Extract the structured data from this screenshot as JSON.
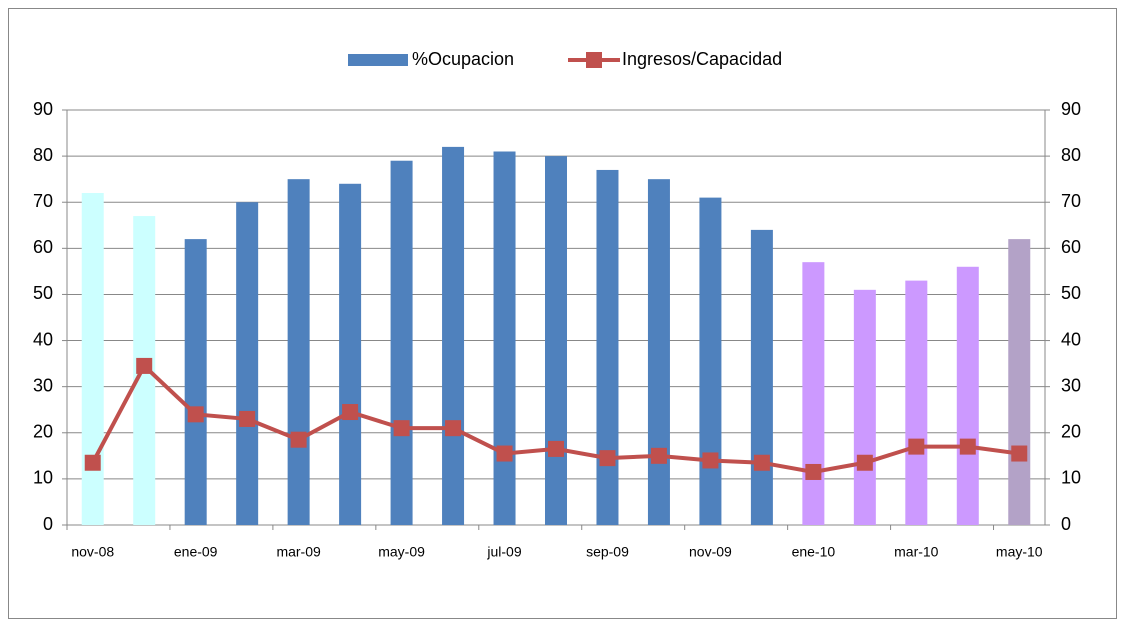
{
  "chart_data": {
    "type": "bar-line",
    "categories": [
      "nov-08",
      null,
      "ene-09",
      null,
      "mar-09",
      null,
      "may-09",
      null,
      "jul-09",
      null,
      "sep-09",
      null,
      "nov-09",
      null,
      "ene-10",
      null,
      "mar-10",
      null,
      "may-10"
    ],
    "series": [
      {
        "name": "%Ocupacion",
        "type": "bar",
        "color": "#4f81bd",
        "colors": [
          "#ccffff",
          "#ccffff",
          "#4f81bd",
          "#4f81bd",
          "#4f81bd",
          "#4f81bd",
          "#4f81bd",
          "#4f81bd",
          "#4f81bd",
          "#4f81bd",
          "#4f81bd",
          "#4f81bd",
          "#4f81bd",
          "#4f81bd",
          "#cc99ff",
          "#cc99ff",
          "#cc99ff",
          "#cc99ff",
          "#b3a2c7"
        ],
        "values": [
          72,
          67,
          62,
          70,
          75,
          74,
          79,
          82,
          81,
          80,
          77,
          75,
          71,
          64,
          57,
          51,
          53,
          56,
          62
        ]
      },
      {
        "name": "Ingresos/Capacidad",
        "type": "line",
        "axis": "y2",
        "color": "#c0504d",
        "values": [
          13.5,
          34.5,
          24,
          23,
          18.5,
          24.5,
          21,
          21,
          15.5,
          16.5,
          14.5,
          15,
          14,
          13.5,
          11.5,
          13.5,
          17,
          17,
          15.5
        ]
      }
    ],
    "ylim": [
      0,
      90
    ],
    "yticks": [
      0,
      10,
      20,
      30,
      40,
      50,
      60,
      70,
      80,
      90
    ],
    "y2lim": [
      0,
      90
    ],
    "y2ticks": [
      0,
      10,
      20,
      30,
      40,
      50,
      60,
      70,
      80,
      90
    ],
    "grid": true,
    "legend": "top"
  }
}
